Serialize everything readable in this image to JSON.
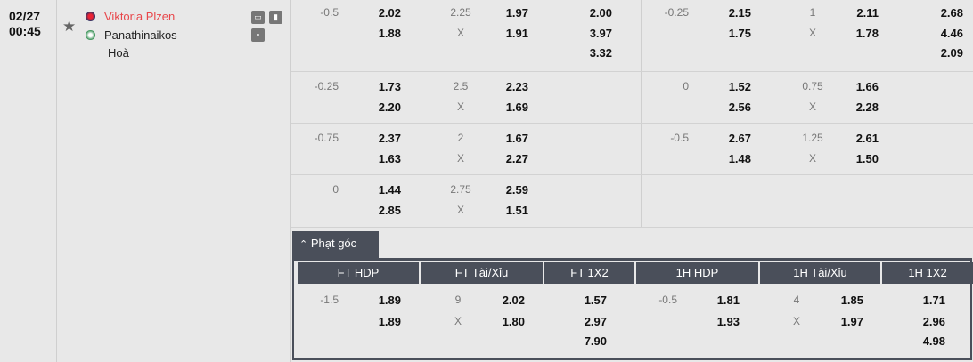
{
  "match": {
    "date": "02/27",
    "time": "00:45",
    "home": "Viktoria Plzen",
    "away": "Panathinaikos",
    "draw_label": "Hoà",
    "home_color": "#e8474b",
    "icons": [
      "tv-icon",
      "stats-icon",
      "lineup-icon"
    ]
  },
  "main_rows": [
    {
      "ft_hdp_line": "-0.5",
      "ft_hdp": [
        "2.02",
        "1.88"
      ],
      "ft_ou_line": "2.25",
      "ft_ou_x": "X",
      "ft_ou": [
        "1.97",
        "1.91"
      ],
      "ft_1x2": [
        "2.00",
        "3.97",
        "3.32"
      ],
      "h1_hdp_line": "-0.25",
      "h1_hdp": [
        "2.15",
        "1.75"
      ],
      "h1_ou_line": "1",
      "h1_ou_x": "X",
      "h1_ou": [
        "2.11",
        "1.78"
      ],
      "h1_1x2": [
        "2.68",
        "4.46",
        "2.09"
      ]
    },
    {
      "ft_hdp_line": "-0.25",
      "ft_hdp": [
        "1.73",
        "2.20"
      ],
      "ft_ou_line": "2.5",
      "ft_ou_x": "X",
      "ft_ou": [
        "2.23",
        "1.69"
      ],
      "ft_1x2": [],
      "h1_hdp_line": "0",
      "h1_hdp": [
        "1.52",
        "2.56"
      ],
      "h1_ou_line": "0.75",
      "h1_ou_x": "X",
      "h1_ou": [
        "1.66",
        "2.28"
      ],
      "h1_1x2": []
    },
    {
      "ft_hdp_line": "-0.75",
      "ft_hdp": [
        "2.37",
        "1.63"
      ],
      "ft_ou_line": "2",
      "ft_ou_x": "X",
      "ft_ou": [
        "1.67",
        "2.27"
      ],
      "ft_1x2": [],
      "h1_hdp_line": "-0.5",
      "h1_hdp": [
        "2.67",
        "1.48"
      ],
      "h1_ou_line": "1.25",
      "h1_ou_x": "X",
      "h1_ou": [
        "2.61",
        "1.50"
      ],
      "h1_1x2": []
    },
    {
      "ft_hdp_line": "0",
      "ft_hdp": [
        "1.44",
        "2.85"
      ],
      "ft_ou_line": "2.75",
      "ft_ou_x": "X",
      "ft_ou": [
        "2.59",
        "1.51"
      ],
      "ft_1x2": [],
      "h1_hdp_line": "",
      "h1_hdp": [],
      "h1_ou_line": "",
      "h1_ou_x": "",
      "h1_ou": [],
      "h1_1x2": []
    }
  ],
  "corners": {
    "tab_label": "Phạt góc",
    "tab_icon": "chevron-up-icon",
    "headers": [
      "FT HDP",
      "FT Tài/Xỉu",
      "FT 1X2",
      "1H HDP",
      "1H Tài/Xỉu",
      "1H 1X2"
    ],
    "row": {
      "ft_hdp_line": "-1.5",
      "ft_hdp": [
        "1.89",
        "1.89"
      ],
      "ft_ou_line": "9",
      "ft_ou_x": "X",
      "ft_ou": [
        "2.02",
        "1.80"
      ],
      "ft_1x2": [
        "1.57",
        "2.97",
        "7.90"
      ],
      "h1_hdp_line": "-0.5",
      "h1_hdp": [
        "1.81",
        "1.93"
      ],
      "h1_ou_line": "4",
      "h1_ou_x": "X",
      "h1_ou": [
        "1.85",
        "1.97"
      ],
      "h1_1x2": [
        "1.71",
        "2.96",
        "4.98"
      ]
    }
  }
}
